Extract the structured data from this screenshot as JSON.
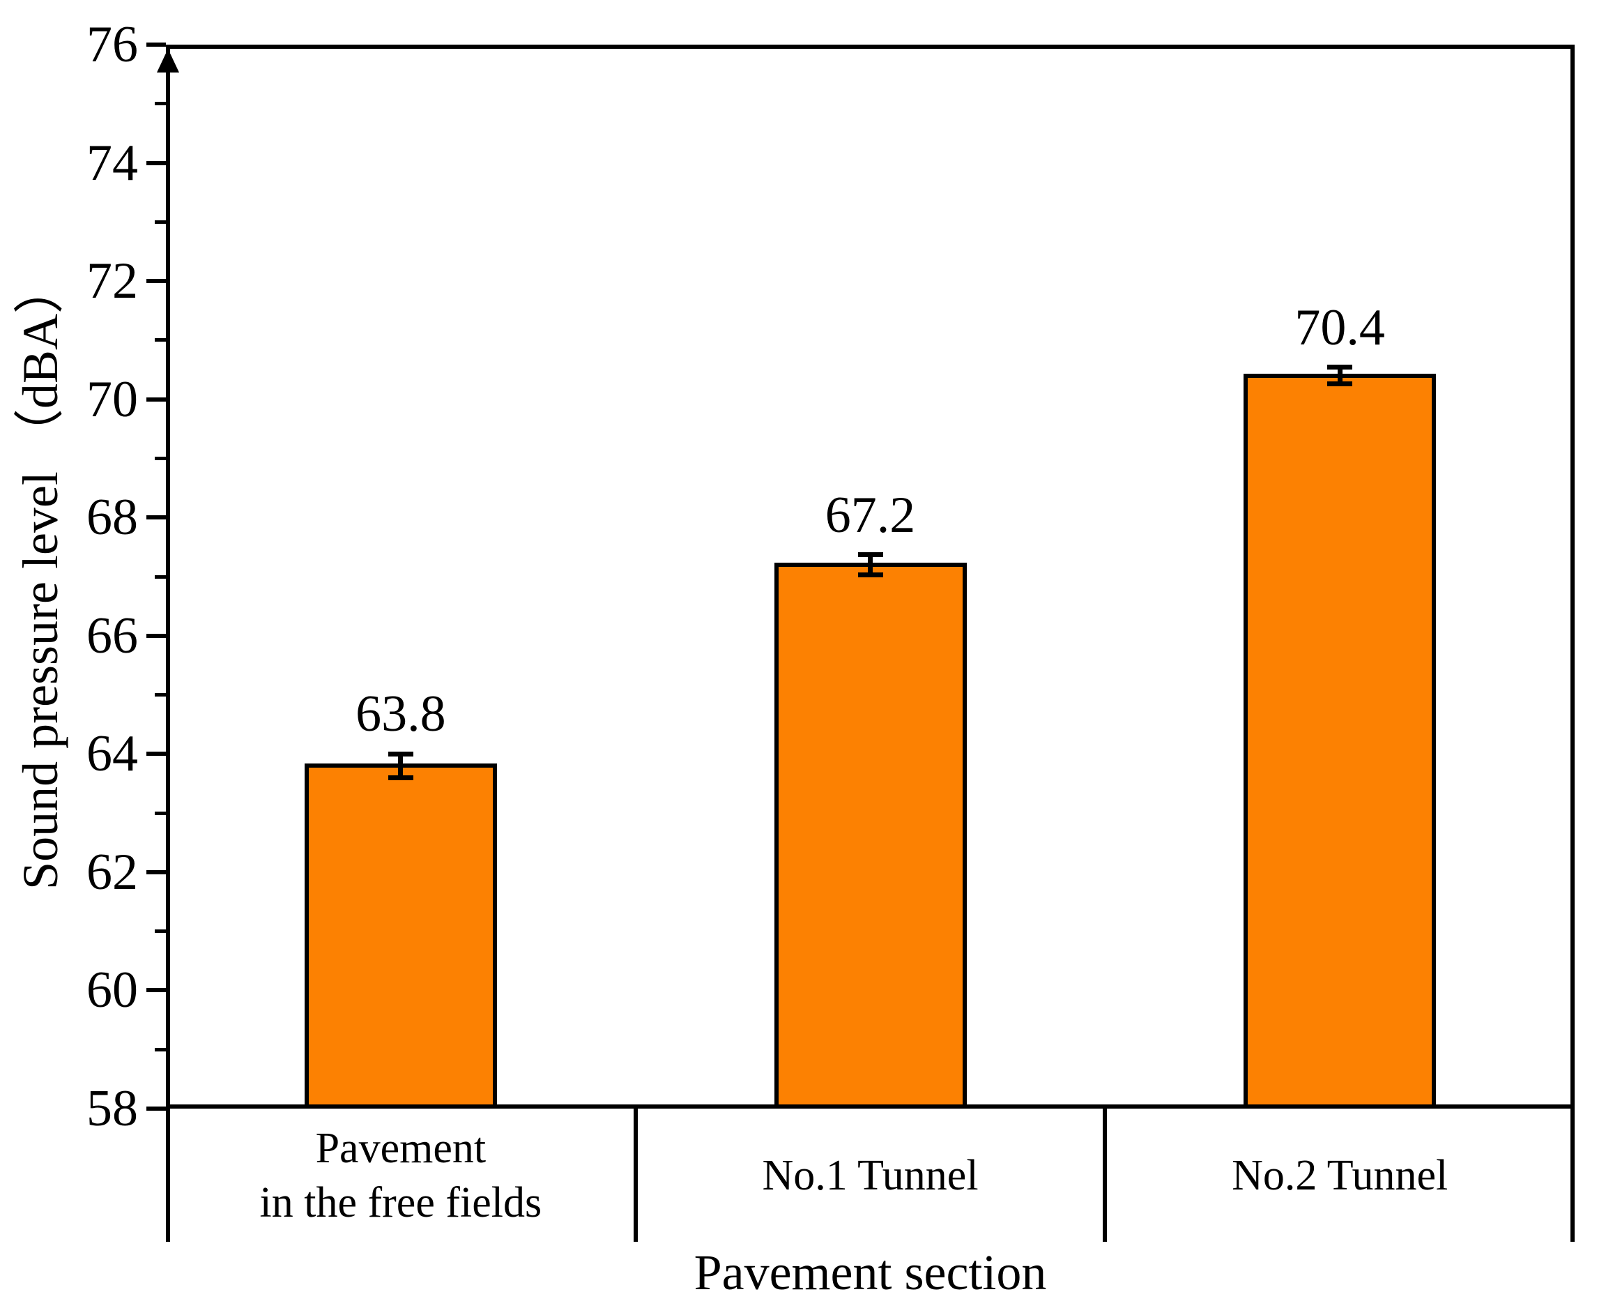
{
  "chart_data": {
    "type": "bar",
    "title": "",
    "xlabel": "Pavement section",
    "ylabel": "Sound pressure level （dBA）",
    "categories": [
      {
        "lines": [
          "Pavement",
          "in the free fields"
        ]
      },
      {
        "lines": [
          "No.1 Tunnel"
        ]
      },
      {
        "lines": [
          "No.2 Tunnel"
        ]
      }
    ],
    "values": [
      63.8,
      67.2,
      70.4
    ],
    "value_labels": [
      "63.8",
      "67.2",
      "70.4"
    ],
    "errors": [
      0.2,
      0.17,
      0.14
    ],
    "ylim": [
      58,
      76
    ],
    "y_major_step": 2,
    "y_minor_step": 1,
    "y_tick_labels": [
      "58",
      "60",
      "62",
      "64",
      "66",
      "68",
      "70",
      "72",
      "74",
      "76"
    ],
    "grid": false,
    "legend": "none",
    "colors": {
      "bar_fill": "#fc8102",
      "bar_border": "#000000",
      "axis": "#000000",
      "text": "#000000",
      "background": "#ffffff"
    }
  }
}
